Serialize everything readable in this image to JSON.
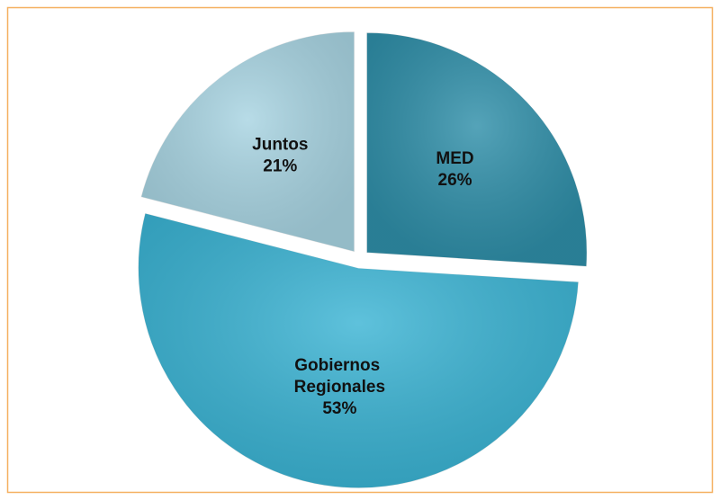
{
  "chart_data": {
    "type": "pie",
    "categories": [
      "MED",
      "Gobiernos Regionales",
      "Juntos"
    ],
    "values": [
      26,
      53,
      21
    ],
    "value_labels": [
      "26%",
      "53%",
      "21%"
    ],
    "colors": [
      "#2f8fa9",
      "#3bb4d4",
      "#a8d4e2"
    ]
  }
}
